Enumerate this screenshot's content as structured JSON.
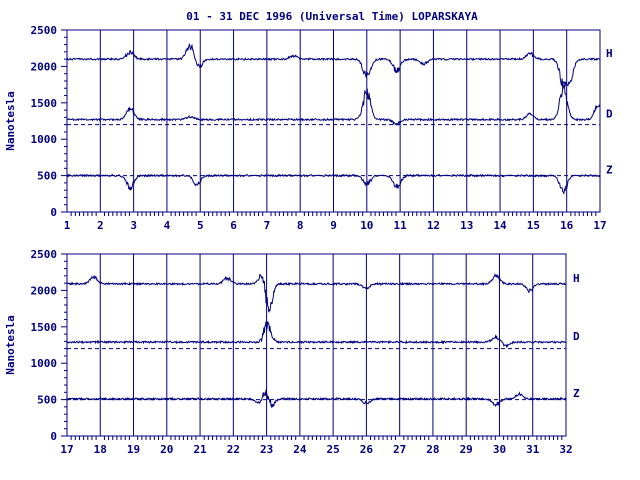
{
  "title": "01 - 31 DEC 1996 (Universal Time) LOPARSKAYA",
  "ylabel": "Nanotesla",
  "colors": {
    "axis": "#000080",
    "trace": "#000080",
    "text": "#000080",
    "baseline": "#000080"
  },
  "chart_data": [
    {
      "type": "line",
      "x_ticks": [
        1,
        2,
        3,
        4,
        5,
        6,
        7,
        8,
        9,
        10,
        11,
        12,
        13,
        14,
        15,
        16,
        17
      ],
      "y_ticks": [
        0,
        500,
        1000,
        1500,
        2000,
        2500
      ],
      "ylim": [
        0,
        2500
      ],
      "xlim": [
        1,
        17
      ],
      "grid": "vertical at each day",
      "series": [
        {
          "name": "H",
          "baseline": 2100,
          "disturbances": [
            [
              2.9,
              120
            ],
            [
              4.7,
              250
            ],
            [
              4.95,
              -150
            ],
            [
              7.8,
              60
            ],
            [
              10.0,
              -300
            ],
            [
              10.9,
              -200
            ],
            [
              11.7,
              -90
            ],
            [
              14.9,
              100
            ],
            [
              15.9,
              -400
            ],
            [
              16.1,
              -300
            ]
          ]
        },
        {
          "name": "D",
          "baseline": 1270,
          "dashed_reference": 1200,
          "disturbances": [
            [
              2.9,
              200
            ],
            [
              4.7,
              50
            ],
            [
              10.0,
              450
            ],
            [
              10.9,
              -80
            ],
            [
              14.9,
              100
            ],
            [
              15.9,
              500
            ],
            [
              16.95,
              250
            ]
          ]
        },
        {
          "name": "Z",
          "baseline": 500,
          "dashed_reference": 500,
          "disturbances": [
            [
              2.9,
              -200
            ],
            [
              4.9,
              -150
            ],
            [
              10.0,
              -150
            ],
            [
              10.9,
              -200
            ],
            [
              15.9,
              -250
            ]
          ]
        }
      ]
    },
    {
      "type": "line",
      "x_ticks": [
        17,
        18,
        19,
        20,
        21,
        22,
        23,
        24,
        25,
        26,
        27,
        28,
        29,
        30,
        31,
        32
      ],
      "y_ticks": [
        0,
        500,
        1000,
        1500,
        2000,
        2500
      ],
      "ylim": [
        0,
        2500
      ],
      "xlim": [
        17,
        32
      ],
      "grid": "vertical at each day",
      "series": [
        {
          "name": "H",
          "baseline": 2090,
          "disturbances": [
            [
              17.8,
              120
            ],
            [
              21.8,
              100
            ],
            [
              22.9,
              250
            ],
            [
              23.05,
              -500
            ],
            [
              26.0,
              -80
            ],
            [
              29.9,
              130
            ],
            [
              30.9,
              -120
            ]
          ]
        },
        {
          "name": "D",
          "baseline": 1290,
          "dashed_reference": 1200,
          "disturbances": [
            [
              22.9,
              -80
            ],
            [
              23.0,
              350
            ],
            [
              29.9,
              80
            ],
            [
              30.2,
              -60
            ]
          ]
        },
        {
          "name": "Z",
          "baseline": 510,
          "dashed_reference": 500,
          "disturbances": [
            [
              22.8,
              -100
            ],
            [
              23.0,
              250
            ],
            [
              23.1,
              -220
            ],
            [
              26.0,
              -80
            ],
            [
              29.9,
              -100
            ],
            [
              30.6,
              80
            ]
          ]
        }
      ]
    }
  ]
}
